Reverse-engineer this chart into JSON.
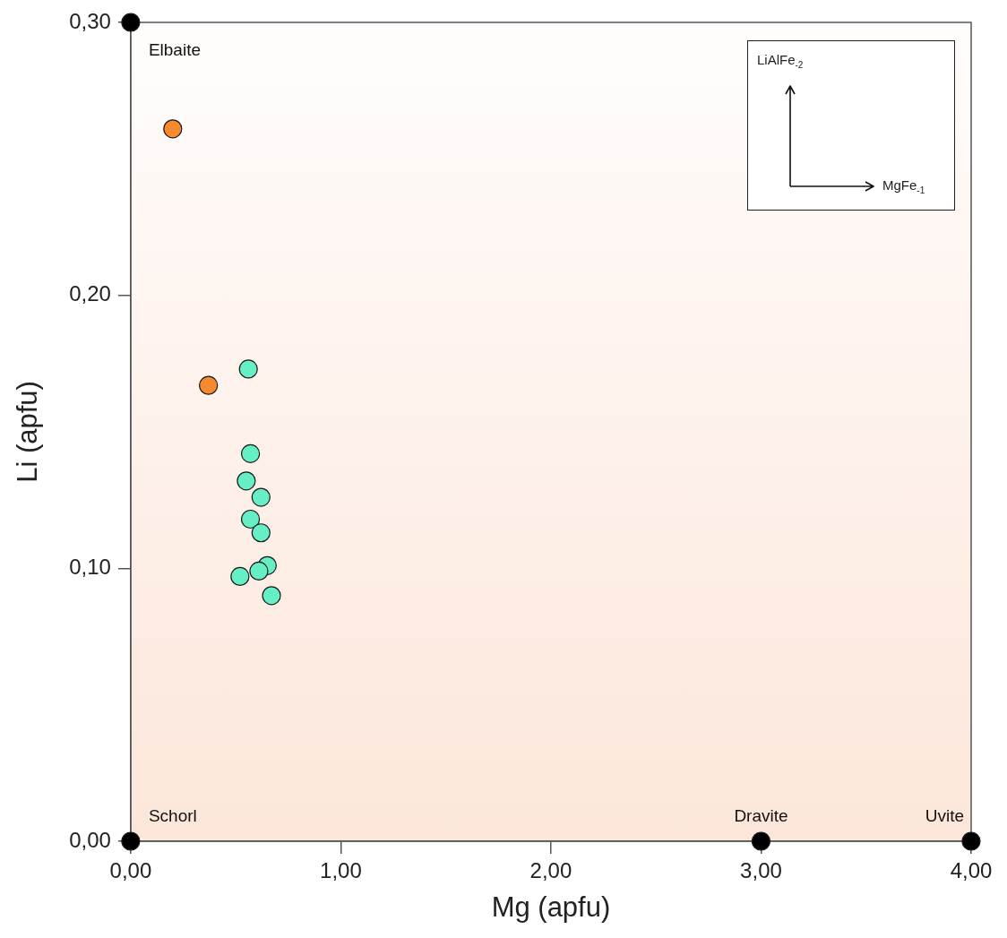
{
  "chart_data": {
    "type": "scatter",
    "xlabel": "Mg (apfu)",
    "ylabel": "Li (apfu)",
    "xlim": [
      0,
      4
    ],
    "xticks": [
      {
        "value": 0,
        "label": "0,00"
      },
      {
        "value": 1,
        "label": "1,00"
      },
      {
        "value": 2,
        "label": "2,00"
      },
      {
        "value": 3,
        "label": "3,00"
      },
      {
        "value": 4,
        "label": "4,00"
      }
    ],
    "ylim": [
      0,
      0.3
    ],
    "yticks": [
      {
        "value": 0,
        "label": "0,00"
      },
      {
        "value": 0.1,
        "label": "0,10"
      },
      {
        "value": 0.2,
        "label": "0,20"
      },
      {
        "value": 0.3,
        "label": "0,30"
      }
    ],
    "grid": false,
    "legend": false,
    "marker": "circle",
    "series": [
      {
        "color": "#000000",
        "x": [
          0,
          0,
          3,
          4
        ],
        "values": [
          0.3,
          0,
          0,
          0
        ]
      },
      {
        "color": "#f58b2e",
        "x": [
          0.2,
          0.37
        ],
        "values": [
          0.261,
          0.167
        ]
      },
      {
        "color": "#66efc4",
        "x": [
          0.56,
          0.57,
          0.55,
          0.62,
          0.57,
          0.62,
          0.65,
          0.52,
          0.61,
          0.67
        ],
        "values": [
          0.173,
          0.142,
          0.132,
          0.126,
          0.118,
          0.113,
          0.101,
          0.097,
          0.099,
          0.09
        ]
      }
    ],
    "annotations": [
      {
        "text": "Elbaite",
        "x": 0,
        "y": 0.3
      },
      {
        "text": "Schorl",
        "x": 0,
        "y": 0
      },
      {
        "text": "Dravite",
        "x": 3,
        "y": 0
      },
      {
        "text": "Uvite",
        "x": 4,
        "y": 0
      },
      "LiAlFe$_{-2}$",
      "MgFe$_{-1}$"
    ]
  }
}
